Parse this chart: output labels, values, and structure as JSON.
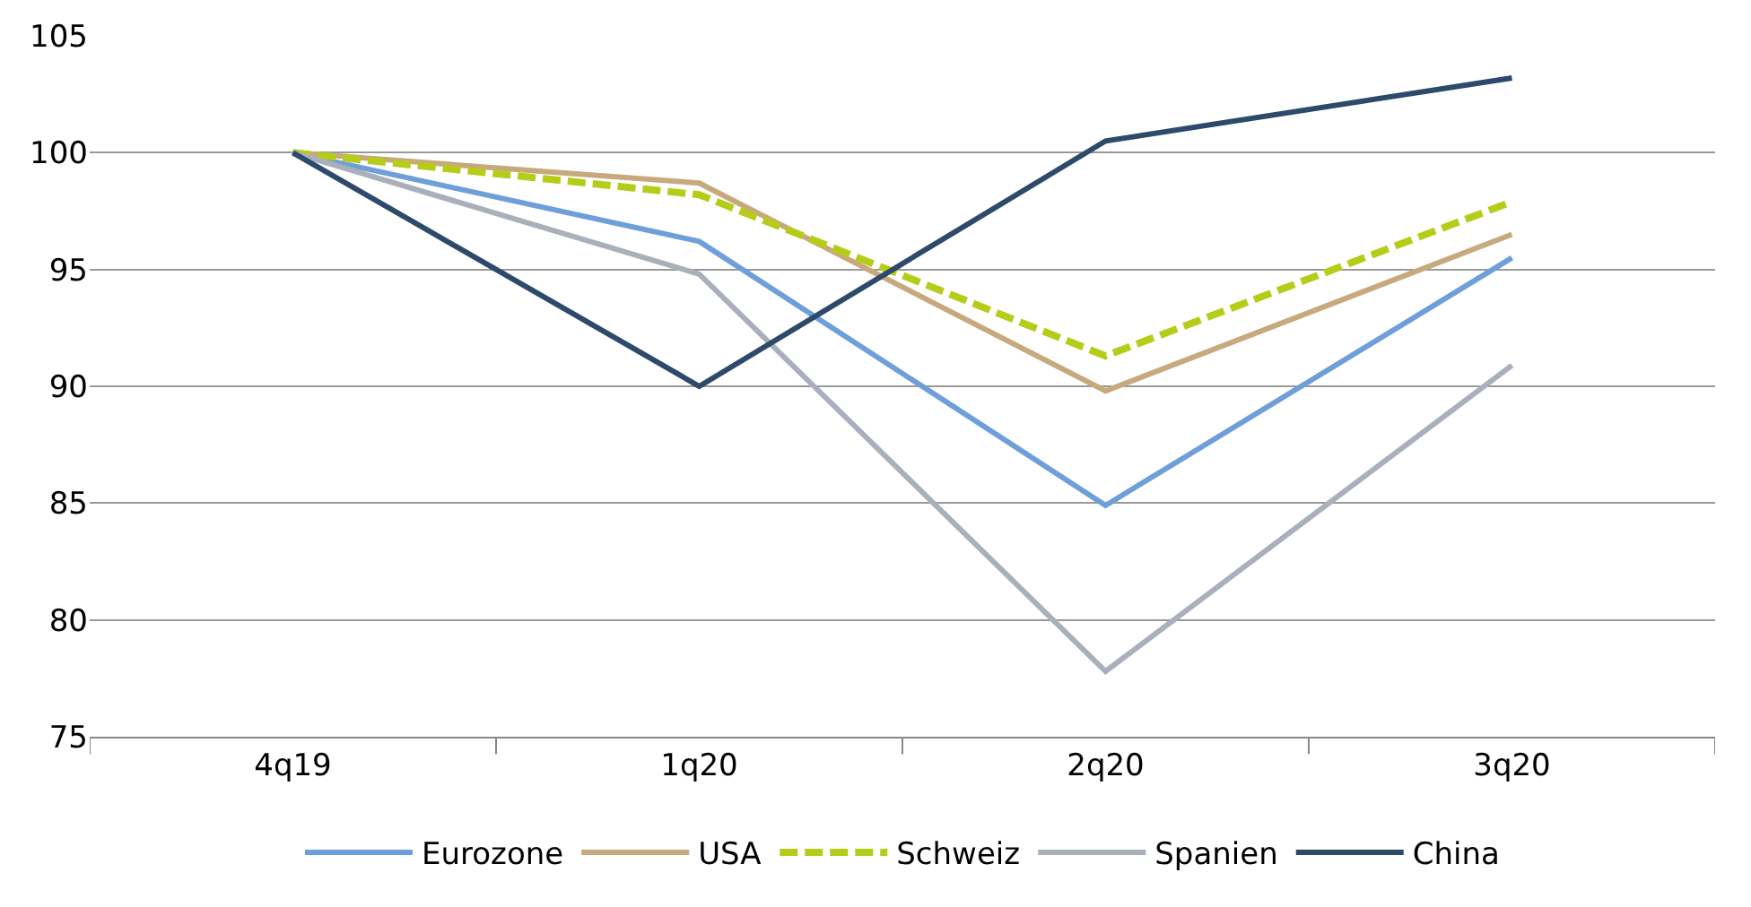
{
  "chart_data": {
    "type": "line",
    "categories": [
      "4q19",
      "1q20",
      "2q20",
      "3q20"
    ],
    "series": [
      {
        "name": "Eurozone",
        "color": "#6f9fd8",
        "values": [
          100,
          96.2,
          84.9,
          95.5
        ]
      },
      {
        "name": "USA",
        "color": "#c8a97e",
        "values": [
          100,
          98.7,
          89.8,
          96.5
        ]
      },
      {
        "name": "Schweiz",
        "color": "#b5cc18",
        "values": [
          100,
          98.2,
          91.3,
          97.9
        ],
        "line_style": "dashed"
      },
      {
        "name": "Spanien",
        "color": "#a9b0bb",
        "values": [
          100,
          94.8,
          77.8,
          90.9
        ]
      },
      {
        "name": "China",
        "color": "#2d4a6b",
        "values": [
          100,
          90.0,
          100.5,
          103.2
        ]
      }
    ],
    "ylim": [
      75,
      105
    ],
    "yticks": [
      75,
      80,
      85,
      90,
      95,
      100,
      105
    ],
    "grid": "y",
    "legend": "bottom",
    "marker": "none"
  }
}
